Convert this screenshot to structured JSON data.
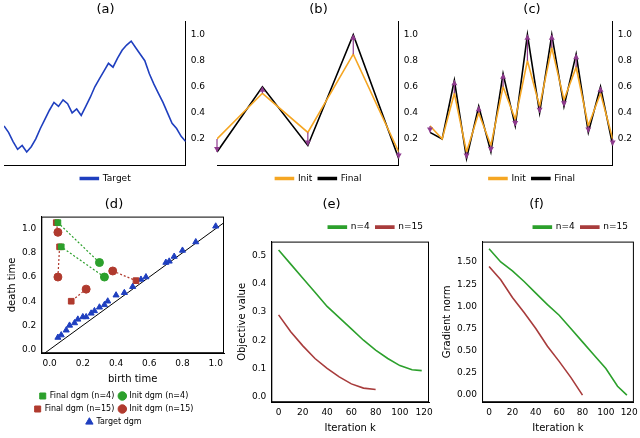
{
  "chart_data": [
    {
      "type": "line",
      "title": "(a)",
      "tick_labels": "y",
      "grid": false,
      "legend": "bottom",
      "x": [
        0,
        1,
        2,
        3,
        4,
        5,
        6,
        7,
        8,
        9,
        10,
        11,
        12,
        13,
        14,
        15,
        16,
        17,
        18,
        19,
        20,
        21,
        22,
        23,
        24,
        25,
        26,
        27,
        28,
        29,
        30,
        31,
        32,
        33,
        34,
        35,
        36,
        37,
        38,
        39,
        40
      ],
      "xlim": [
        0,
        40
      ],
      "ylim": [
        0,
        1.1
      ],
      "yticks": [
        0.2,
        0.4,
        0.6,
        0.8,
        {
          "value": 1,
          "label": "1.0"
        }
      ],
      "series": [
        {
          "name": "Target",
          "color": "#1f3fbf",
          "values": [
            0.3,
            0.25,
            0.18,
            0.12,
            0.15,
            0.1,
            0.14,
            0.2,
            0.28,
            0.35,
            0.42,
            0.48,
            0.45,
            0.5,
            0.47,
            0.4,
            0.43,
            0.38,
            0.45,
            0.52,
            0.6,
            0.66,
            0.72,
            0.78,
            0.75,
            0.82,
            0.88,
            0.92,
            0.95,
            0.9,
            0.85,
            0.8,
            0.7,
            0.62,
            0.55,
            0.48,
            0.4,
            0.32,
            0.28,
            0.22,
            0.18
          ]
        }
      ]
    },
    {
      "type": "line",
      "title": "(b)",
      "tick_labels": "y",
      "grid": false,
      "legend": "bottom",
      "x": [
        0,
        1,
        2,
        3,
        4
      ],
      "xlim": [
        0,
        4
      ],
      "ylim": [
        0,
        1.1
      ],
      "yticks": [
        0.2,
        0.4,
        0.6,
        0.8,
        {
          "value": 1,
          "label": "1.0"
        }
      ],
      "series": [
        {
          "name": "Init",
          "color": "#f5a623",
          "values": [
            0.2,
            0.55,
            0.25,
            0.85,
            0.1
          ]
        },
        {
          "name": "Final",
          "color": "#000000",
          "values": [
            0.1,
            0.6,
            0.15,
            1.0,
            0.05
          ]
        }
      ]
    },
    {
      "type": "line",
      "title": "(c)",
      "tick_labels": "y",
      "grid": false,
      "legend": "bottom",
      "x": [
        0,
        1,
        2,
        3,
        4,
        5,
        6,
        7,
        8,
        9,
        10,
        11,
        12,
        13,
        14,
        15
      ],
      "xlim": [
        0,
        15
      ],
      "ylim": [
        0,
        1.1
      ],
      "yticks": [
        0.2,
        0.4,
        0.6,
        0.8,
        {
          "value": 1,
          "label": "1.0"
        }
      ],
      "series": [
        {
          "name": "Init",
          "color": "#f5a623",
          "values": [
            0.3,
            0.2,
            0.55,
            0.1,
            0.4,
            0.15,
            0.6,
            0.35,
            0.8,
            0.45,
            0.9,
            0.5,
            0.75,
            0.3,
            0.55,
            0.2
          ]
        },
        {
          "name": "Final",
          "color": "#000000",
          "values": [
            0.25,
            0.2,
            0.65,
            0.05,
            0.45,
            0.1,
            0.7,
            0.3,
            1.0,
            0.4,
            1.0,
            0.45,
            0.85,
            0.25,
            0.6,
            0.15
          ]
        }
      ]
    },
    {
      "type": "scatter",
      "title": "(d)",
      "x_label": "birth time",
      "y_label": "death time",
      "grid": false,
      "legend": "bottom",
      "xlim": [
        -0.05,
        1.05
      ],
      "ylim": [
        -0.03,
        1.1
      ],
      "xticks": [
        {
          "value": 0,
          "label": "0.0"
        },
        0.2,
        0.4,
        0.6,
        0.8,
        {
          "value": 1,
          "label": "1.0"
        }
      ],
      "yticks": [
        {
          "value": 0,
          "label": "0.0"
        },
        0.2,
        0.4,
        0.6,
        0.8,
        {
          "value": 1,
          "label": "1.0"
        }
      ],
      "series": [
        {
          "name": "Final dgm (n=4)",
          "color": "#2ca02c",
          "marker": "square",
          "x": [
            0.05,
            0.07
          ],
          "values": [
            1.05,
            0.85
          ]
        },
        {
          "name": "Init dgm (n=4)",
          "color": "#2ca02c",
          "marker": "circle",
          "x": [
            0.3,
            0.33
          ],
          "values": [
            0.72,
            0.6
          ]
        },
        {
          "name": "Final dgm (n=15)",
          "color": "#b03a2e",
          "marker": "square",
          "x": [
            0.04,
            0.06,
            0.13,
            0.52
          ],
          "values": [
            1.05,
            0.85,
            0.4,
            0.57
          ]
        },
        {
          "name": "Init dgm (n=15)",
          "color": "#b03a2e",
          "marker": "circle",
          "x": [
            0.05,
            0.05,
            0.22,
            0.38
          ],
          "values": [
            0.97,
            0.6,
            0.5,
            0.65
          ]
        },
        {
          "name": "Target dgm",
          "color": "#1f3fbf",
          "marker": "triangle",
          "x": [
            0.05,
            0.07,
            0.1,
            0.12,
            0.15,
            0.17,
            0.2,
            0.22,
            0.25,
            0.27,
            0.3,
            0.33,
            0.35,
            0.4,
            0.45,
            0.5,
            0.55,
            0.58,
            0.7,
            0.72,
            0.75,
            0.8,
            0.88,
            1.0
          ],
          "values": [
            0.1,
            0.12,
            0.16,
            0.2,
            0.22,
            0.25,
            0.27,
            0.27,
            0.3,
            0.32,
            0.35,
            0.37,
            0.4,
            0.45,
            0.47,
            0.52,
            0.58,
            0.6,
            0.72,
            0.73,
            0.77,
            0.82,
            0.89,
            1.02
          ]
        }
      ]
    },
    {
      "type": "line",
      "title": "(e)",
      "x_label": "Iteration k",
      "y_label": "Objective value",
      "grid": false,
      "legend": "upper right",
      "x": [
        0,
        10,
        20,
        30,
        40,
        50,
        60,
        70,
        80,
        90,
        100,
        110,
        118
      ],
      "xlim": [
        -6,
        124
      ],
      "xticks": [
        0,
        20,
        40,
        60,
        80,
        100,
        120
      ],
      "ylim": [
        -0.02,
        0.55
      ],
      "yticks": [
        {
          "value": 0,
          "label": "0.0"
        },
        0.1,
        0.2,
        0.3,
        0.4,
        0.5
      ],
      "series": [
        {
          "name": "n=4",
          "color": "#2ca02c",
          "values": [
            0.52,
            0.47,
            0.42,
            0.37,
            0.32,
            0.28,
            0.24,
            0.2,
            0.165,
            0.135,
            0.11,
            0.095,
            0.092
          ]
        },
        {
          "name": "n=15",
          "color": "#a83c3c",
          "values": [
            0.29,
            0.23,
            0.18,
            0.135,
            0.1,
            0.07,
            0.045,
            0.03,
            0.025,
            null,
            null,
            null,
            null
          ]
        }
      ]
    },
    {
      "type": "line",
      "title": "(f)",
      "x_label": "Iteration k",
      "y_label": "Gradient norm",
      "grid": false,
      "legend": "upper right",
      "x": [
        0,
        10,
        20,
        30,
        40,
        50,
        60,
        70,
        80,
        90,
        100,
        110,
        118
      ],
      "xlim": [
        -6,
        124
      ],
      "xticks": [
        0,
        20,
        40,
        60,
        80,
        100,
        120
      ],
      "ylim": [
        -0.08,
        1.73
      ],
      "yticks": [
        {
          "value": 0,
          "label": "0.00"
        },
        {
          "value": 0.25,
          "label": "0.25"
        },
        {
          "value": 0.5,
          "label": "0.50"
        },
        {
          "value": 0.75,
          "label": "0.75"
        },
        {
          "value": 1,
          "label": "1.00"
        },
        {
          "value": 1.25,
          "label": "1.25"
        },
        {
          "value": 1.5,
          "label": "1.50"
        }
      ],
      "series": [
        {
          "name": "n=4",
          "color": "#2ca02c",
          "values": [
            1.65,
            1.5,
            1.4,
            1.28,
            1.15,
            1.02,
            0.9,
            0.75,
            0.6,
            0.45,
            0.3,
            0.1,
            0.0
          ]
        },
        {
          "name": "n=15",
          "color": "#a83c3c",
          "values": [
            1.45,
            1.3,
            1.1,
            0.93,
            0.75,
            0.55,
            0.38,
            0.2,
            0.0,
            null,
            null,
            null,
            null
          ]
        }
      ]
    }
  ]
}
